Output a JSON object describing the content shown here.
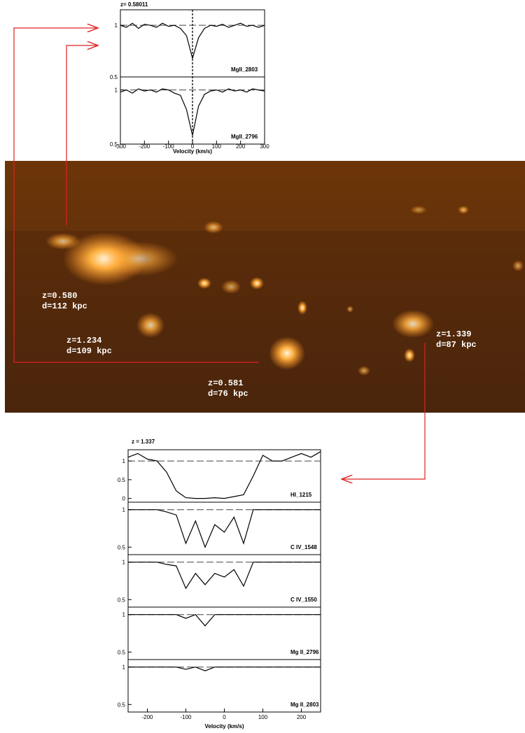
{
  "image_labels": [
    [
      "z=0.580",
      "d=112 kpc"
    ],
    [
      "z=1.234",
      "d=109 kpc"
    ],
    [
      "z=0.581",
      "d=76 kpc"
    ],
    [
      "z=1.339",
      "d=87 kpc"
    ]
  ],
  "chart_data": [
    {
      "type": "line",
      "title": "z=  0.58011",
      "x_label": "Velocity (km/s)",
      "color": "#000000",
      "xlim": [
        -300,
        300
      ],
      "xticks": [
        -300,
        -200,
        -100,
        0,
        100,
        200,
        300
      ],
      "x": [
        -300,
        -275,
        -250,
        -225,
        -200,
        -175,
        -150,
        -125,
        -100,
        -75,
        -50,
        -25,
        0,
        25,
        50,
        75,
        100,
        125,
        150,
        175,
        200,
        225,
        250,
        275,
        300
      ],
      "series": [
        {
          "name": "MgII_2803",
          "ylim": [
            0.5,
            1.15
          ],
          "yticks": [
            0.5,
            1
          ],
          "values": [
            1,
            0.98,
            1.02,
            0.97,
            1.01,
            1,
            0.98,
            1.02,
            0.99,
            1,
            0.97,
            0.9,
            0.68,
            0.88,
            0.97,
            1,
            0.99,
            1.01,
            0.98,
            1,
            1.02,
            0.99,
            1,
            0.98,
            1
          ]
        },
        {
          "name": "MgII_2796",
          "ylim": [
            0.5,
            1.12
          ],
          "yticks": [
            0.5,
            1
          ],
          "values": [
            0.98,
            1,
            0.97,
            1.01,
            0.99,
            1,
            0.98,
            1.01,
            1,
            0.97,
            0.95,
            0.82,
            0.58,
            0.85,
            0.96,
            0.99,
            1,
            0.98,
            1.01,
            0.99,
            1,
            0.98,
            1.01,
            1,
            0.99
          ]
        }
      ]
    },
    {
      "type": "line",
      "title": "z = 1.337",
      "x_label": "Velocity (km/s)",
      "color": "#000000",
      "xlim": [
        -250,
        250
      ],
      "xticks": [
        -200,
        -100,
        0,
        100,
        200
      ],
      "x": [
        -250,
        -225,
        -200,
        -175,
        -150,
        -125,
        -100,
        -75,
        -50,
        -25,
        0,
        25,
        50,
        75,
        100,
        125,
        150,
        175,
        200,
        225,
        250
      ],
      "series": [
        {
          "name": "HI_1215",
          "ylim": [
            -0.1,
            1.3
          ],
          "yticks": [
            0,
            0.5,
            1
          ],
          "values": [
            1.1,
            1.2,
            1.05,
            1,
            0.7,
            0.2,
            0.02,
            0,
            0,
            0.02,
            0,
            0.05,
            0.1,
            0.6,
            1.15,
            1,
            1,
            1.1,
            1.2,
            1.1,
            1.25
          ]
        },
        {
          "name": "C IV_1548",
          "ylim": [
            0.4,
            1.1
          ],
          "yticks": [
            0.5,
            1
          ],
          "values": [
            1,
            1,
            1,
            1,
            0.97,
            0.93,
            0.55,
            0.85,
            0.5,
            0.8,
            0.7,
            0.9,
            0.55,
            1,
            1,
            1,
            1,
            1,
            1,
            1,
            1
          ]
        },
        {
          "name": "C IV_1550",
          "ylim": [
            0.4,
            1.1
          ],
          "yticks": [
            0.5,
            1
          ],
          "values": [
            1,
            1,
            1,
            1,
            0.97,
            0.95,
            0.65,
            0.85,
            0.7,
            0.85,
            0.8,
            0.9,
            0.68,
            1,
            1,
            1,
            1,
            1,
            1,
            1,
            1
          ]
        },
        {
          "name": "Mg II_2796",
          "ylim": [
            0.4,
            1.1
          ],
          "yticks": [
            0.5,
            1
          ],
          "values": [
            1,
            1,
            1,
            1,
            1,
            1,
            0.95,
            1,
            0.85,
            1,
            1,
            1,
            1,
            1,
            1,
            1,
            1,
            1,
            1,
            1,
            1
          ]
        },
        {
          "name": "Mg II_2803",
          "ylim": [
            0.4,
            1.1
          ],
          "yticks": [
            0.5,
            1
          ],
          "values": [
            1,
            1,
            1,
            1,
            1,
            1,
            0.97,
            1,
            0.95,
            1,
            1,
            1,
            1,
            1,
            1,
            1,
            1,
            1,
            1,
            1,
            1
          ]
        }
      ]
    }
  ]
}
